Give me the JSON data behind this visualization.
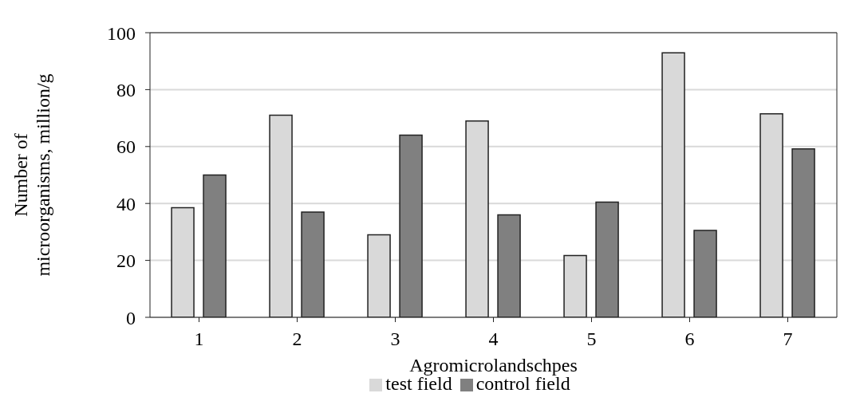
{
  "chart_data": {
    "type": "bar",
    "xlabel": "Agromicrolandschpes",
    "ylabel": "Number of microorganisms, million/g",
    "categories": [
      "1",
      "2",
      "3",
      "4",
      "5",
      "6",
      "7"
    ],
    "series": [
      {
        "name": "test field",
        "color": "#d9d9d9",
        "values": [
          38.5,
          71,
          29,
          69,
          21.7,
          92.9,
          71.5
        ]
      },
      {
        "name": "control field",
        "color": "#808080",
        "values": [
          50,
          37,
          64,
          36,
          40.5,
          30.5,
          59.2
        ]
      }
    ],
    "ylim": [
      0,
      100
    ],
    "yticks": [
      0,
      20,
      40,
      60,
      80,
      100
    ],
    "grid": "y",
    "legend": "bottom"
  }
}
